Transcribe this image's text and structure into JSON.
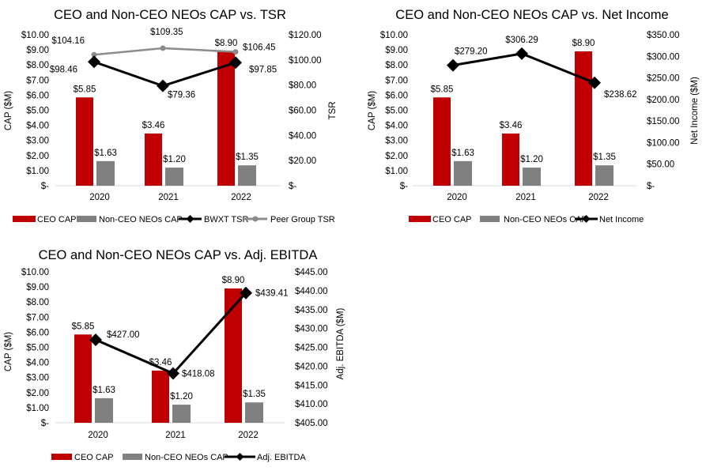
{
  "colors": {
    "ceo": "#c00000",
    "non_ceo": "#808080",
    "line_primary": "#000000",
    "line_peer": "#8c8c8c",
    "muted_label": "#7f7f7f",
    "axis": "#d9d9d9"
  },
  "chart_data": [
    {
      "type": "bar",
      "title": "CEO and Non-CEO NEOs CAP vs. TSR",
      "categories": [
        "2020",
        "2021",
        "2022"
      ],
      "ylabel": "CAP ($M)",
      "ylabel_right": "TSR",
      "ylim": [
        0,
        10
      ],
      "ylim_right": [
        0,
        120
      ],
      "yticks": [
        "$-",
        "$1.00",
        "$2.00",
        "$3.00",
        "$4.00",
        "$5.00",
        "$6.00",
        "$7.00",
        "$8.00",
        "$9.00",
        "$10.00"
      ],
      "yticks_right": [
        "$-",
        "$20.00",
        "$40.00",
        "$60.00",
        "$80.00",
        "$100.00",
        "$120.00"
      ],
      "bars": [
        {
          "name": "CEO CAP",
          "values": [
            5.85,
            3.46,
            8.9
          ],
          "labels": [
            "$5.85",
            "$3.46",
            "$8.90"
          ]
        },
        {
          "name": "Non-CEO NEOs CAP",
          "values": [
            1.63,
            1.2,
            1.35
          ],
          "labels": [
            "$1.63",
            "$1.20",
            "$1.35"
          ]
        }
      ],
      "lines": [
        {
          "name": "BWXT TSR",
          "axis": "right",
          "values": [
            98.46,
            79.36,
            97.85
          ],
          "labels": [
            "$98.46",
            "$79.36",
            "$97.85"
          ]
        },
        {
          "name": "Peer Group TSR",
          "axis": "right",
          "values": [
            104.16,
            109.35,
            106.45
          ],
          "labels": [
            "$104.16",
            "$109.35",
            "$106.45"
          ]
        }
      ],
      "legend": [
        "CEO CAP",
        "Non-CEO NEOs CAP",
        "BWXT TSR",
        "Peer Group TSR"
      ],
      "legend_position": "bottom",
      "grid": false
    },
    {
      "type": "bar",
      "title": "CEO and Non-CEO NEOs CAP vs. Net Income",
      "categories": [
        "2020",
        "2021",
        "2022"
      ],
      "ylabel": "CAP ($M)",
      "ylabel_right": "Net Income ($M)",
      "ylim": [
        0,
        10
      ],
      "ylim_right": [
        0,
        350
      ],
      "yticks": [
        "$-",
        "$1.00",
        "$2.00",
        "$3.00",
        "$4.00",
        "$5.00",
        "$6.00",
        "$7.00",
        "$8.00",
        "$9.00",
        "$10.00"
      ],
      "yticks_right": [
        "$-",
        "$50.00",
        "$100.00",
        "$150.00",
        "$200.00",
        "$250.00",
        "$300.00",
        "$350.00"
      ],
      "bars": [
        {
          "name": "CEO CAP",
          "values": [
            5.85,
            3.46,
            8.9
          ],
          "labels": [
            "$5.85",
            "$3.46",
            "$8.90"
          ]
        },
        {
          "name": "Non-CEO NEOs CAP",
          "values": [
            1.63,
            1.2,
            1.35
          ],
          "labels": [
            "$1.63",
            "$1.20",
            "$1.35"
          ]
        }
      ],
      "lines": [
        {
          "name": "Net Income",
          "axis": "right",
          "values": [
            279.2,
            306.29,
            238.62
          ],
          "labels": [
            "$279.20",
            "$306.29",
            "$238.62"
          ]
        }
      ],
      "legend": [
        "CEO CAP",
        "Non-CEO NEOs CAP",
        "Net Income"
      ],
      "legend_position": "bottom",
      "grid": false
    },
    {
      "type": "bar",
      "title": "CEO and Non-CEO NEOs CAP vs. Adj. EBITDA",
      "categories": [
        "2020",
        "2021",
        "2022"
      ],
      "ylabel": "CAP ($M)",
      "ylabel_right": "Adj. EBITDA ($M)",
      "ylim": [
        0,
        10
      ],
      "ylim_right": [
        405,
        445
      ],
      "yticks": [
        "$-",
        "$1.00",
        "$2.00",
        "$3.00",
        "$4.00",
        "$5.00",
        "$6.00",
        "$7.00",
        "$8.00",
        "$9.00",
        "$10.00"
      ],
      "yticks_right": [
        "$405.00",
        "$410.00",
        "$415.00",
        "$420.00",
        "$425.00",
        "$430.00",
        "$435.00",
        "$440.00",
        "$445.00"
      ],
      "bars": [
        {
          "name": "CEO CAP",
          "values": [
            5.85,
            3.46,
            8.9
          ],
          "labels": [
            "$5.85",
            "$3.46",
            "$8.90"
          ]
        },
        {
          "name": "Non-CEO NEOs CAP",
          "values": [
            1.63,
            1.2,
            1.35
          ],
          "labels": [
            "$1.63",
            "$1.20",
            "$1.35"
          ]
        }
      ],
      "lines": [
        {
          "name": "Adj. EBITDA",
          "axis": "right",
          "values": [
            427.0,
            418.08,
            439.41
          ],
          "labels": [
            "$427.00",
            "$418.08",
            "$439.41"
          ]
        }
      ],
      "legend": [
        "CEO CAP",
        "Non-CEO NEOs CAP",
        "Adj. EBITDA"
      ],
      "legend_position": "bottom",
      "grid": false
    }
  ]
}
